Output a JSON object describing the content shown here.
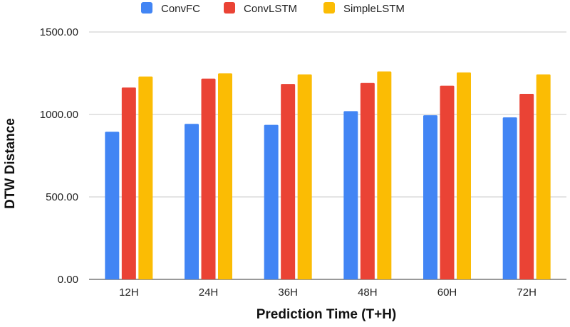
{
  "chart_data": {
    "type": "bar",
    "title": "",
    "xlabel": "Prediction Time (T+H)",
    "ylabel": "DTW Distance",
    "categories": [
      "12H",
      "24H",
      "36H",
      "48H",
      "60H",
      "72H"
    ],
    "series": [
      {
        "name": "ConvFC",
        "color": "#4285f4",
        "values": [
          895,
          943,
          937,
          1020,
          995,
          982
        ]
      },
      {
        "name": "ConvLSTM",
        "color": "#ea4335",
        "values": [
          1163,
          1217,
          1185,
          1191,
          1174,
          1125
        ]
      },
      {
        "name": "SimpleLSTM",
        "color": "#fbbc04",
        "values": [
          1230,
          1249,
          1243,
          1261,
          1255,
          1243
        ]
      }
    ],
    "ylim": [
      0,
      1500
    ],
    "yticks": [
      0,
      500,
      1000,
      1500
    ],
    "ytick_labels": [
      "0.00",
      "500.00",
      "1000.00",
      "1500.00"
    ],
    "grid": true,
    "legend_position": "top-center"
  }
}
